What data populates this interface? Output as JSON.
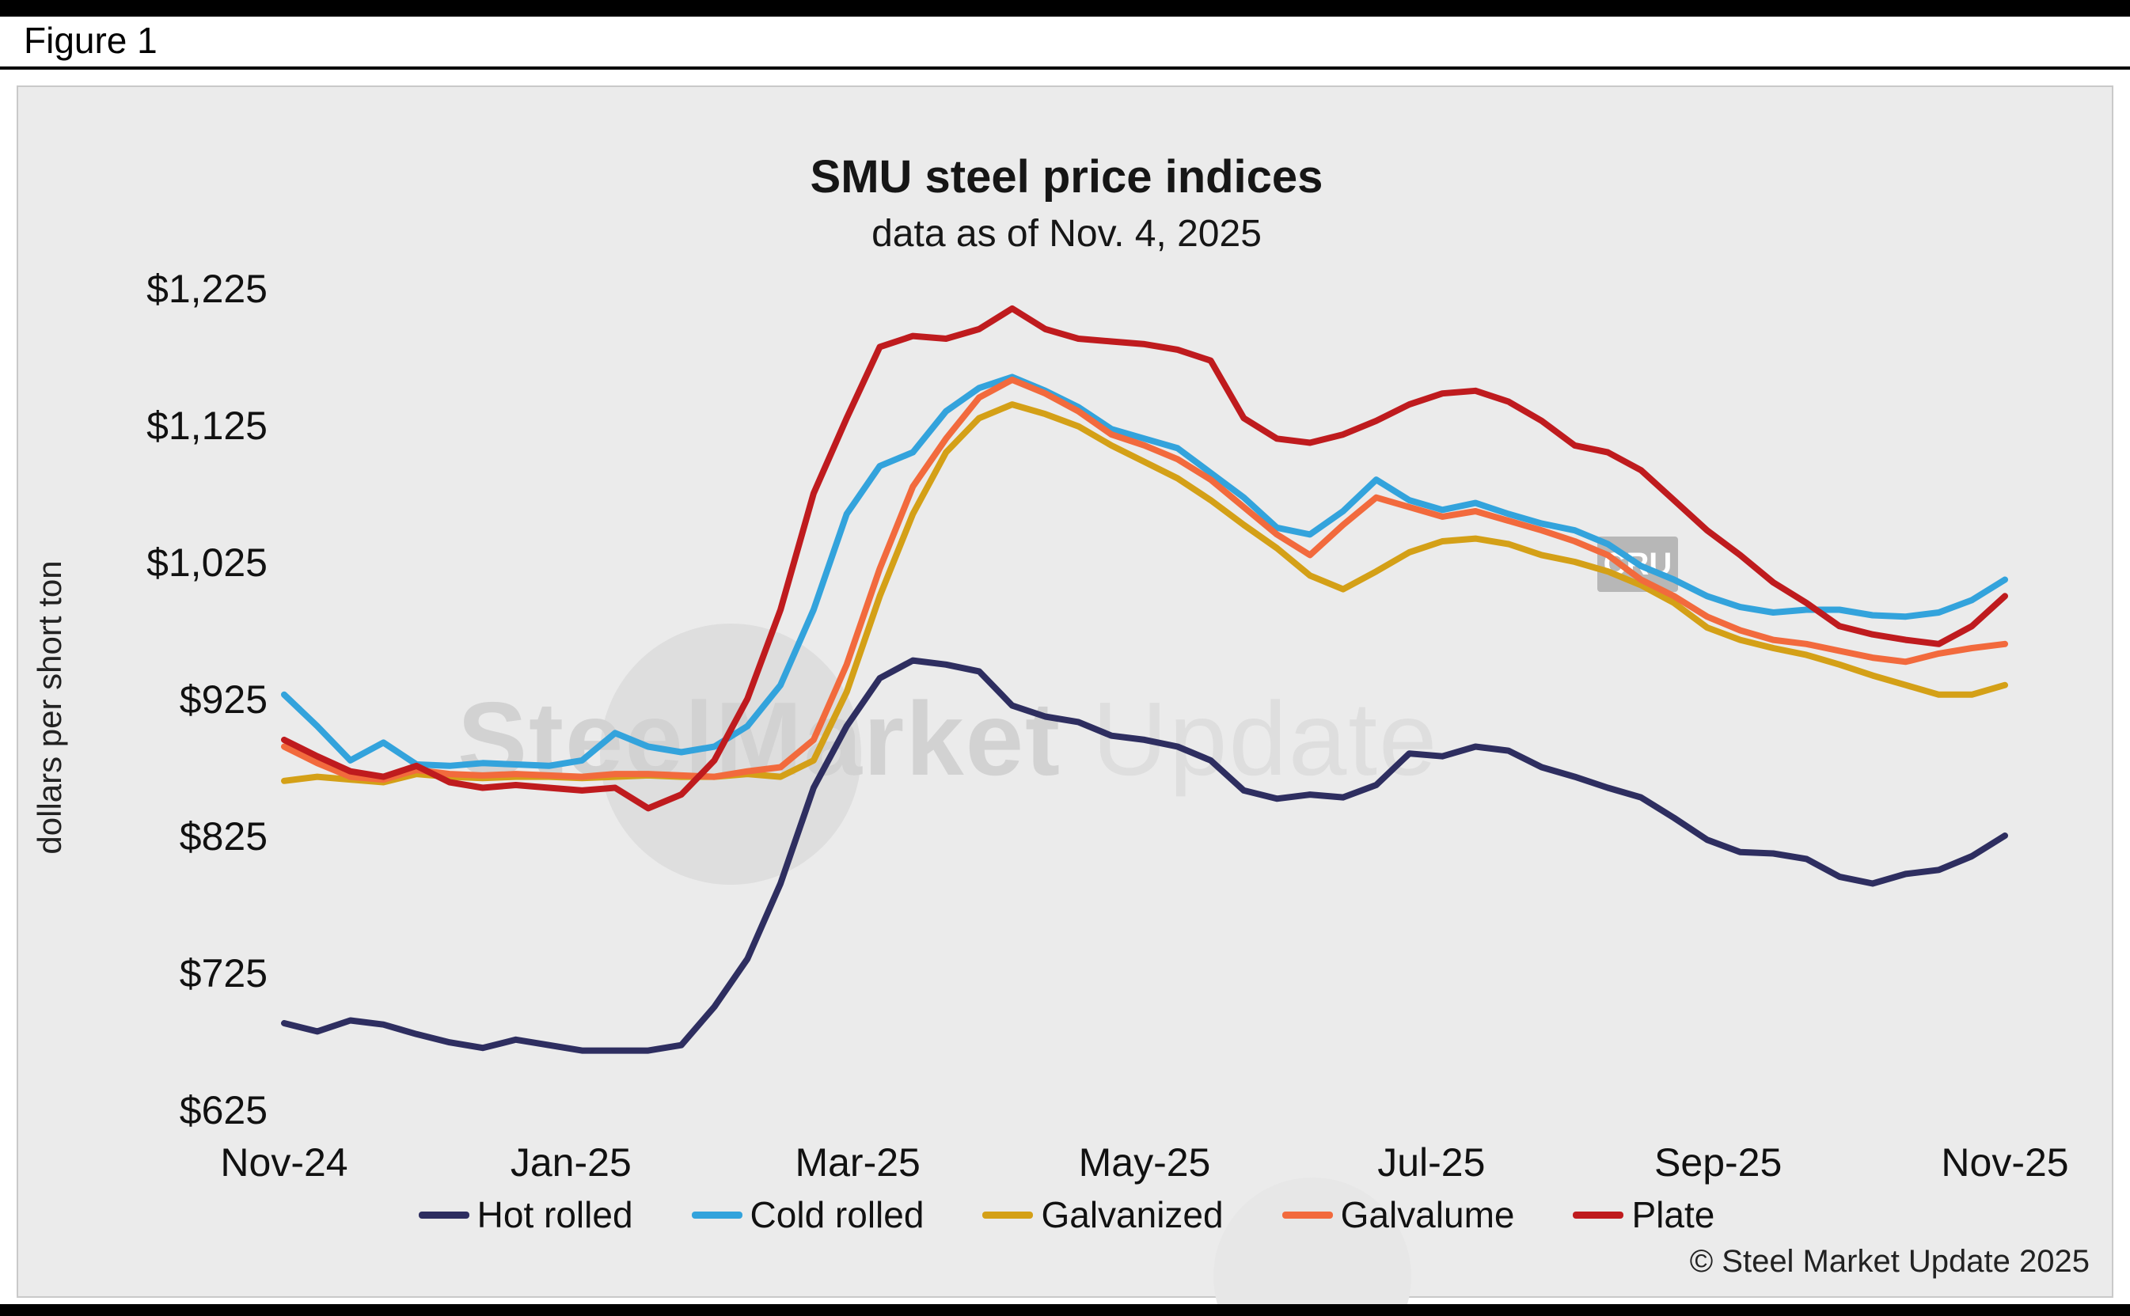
{
  "figure_label": "Figure 1",
  "header": {
    "title": "SMU steel price indices",
    "subtitle": "data as of Nov. 4, 2025"
  },
  "watermark": {
    "text_bold": "SteelMarket",
    "text_light": "Update",
    "badge": "CRU"
  },
  "copyright": "© Steel Market Update 2025",
  "chart_data": {
    "type": "line",
    "title": "SMU steel price indices",
    "subtitle": "data as of Nov. 4, 2025",
    "xlabel": "",
    "ylabel": "dollars per short ton",
    "ylim": [
      625,
      1225
    ],
    "y_ticks": [
      1225,
      1125,
      1025,
      925,
      825,
      725,
      625
    ],
    "y_tick_labels": [
      "$1,225",
      "$1,125",
      "$1,025",
      "$925",
      "$825",
      "$725",
      "$625"
    ],
    "x_ticks": [
      "Nov-24",
      "Jan-25",
      "Mar-25",
      "May-25",
      "Jul-25",
      "Sep-25",
      "Nov-25"
    ],
    "x_unit": "weekly observations, Nov 2024 through Nov 2025",
    "grid": false,
    "legend_position": "bottom",
    "series": [
      {
        "name": "Hot rolled",
        "color": "#2e2e60",
        "values": [
          688,
          682,
          690,
          687,
          680,
          674,
          670,
          676,
          672,
          668,
          668,
          668,
          672,
          700,
          735,
          790,
          860,
          905,
          940,
          953,
          950,
          945,
          920,
          912,
          908,
          898,
          895,
          890,
          880,
          858,
          852,
          855,
          853,
          862,
          885,
          883,
          890,
          887,
          875,
          868,
          860,
          853,
          838,
          822,
          813,
          812,
          808,
          795,
          790,
          797,
          800,
          810,
          825
        ]
      },
      {
        "name": "Cold rolled",
        "color": "#33a3dc",
        "values": [
          928,
          905,
          880,
          893,
          877,
          876,
          878,
          877,
          876,
          880,
          900,
          890,
          886,
          890,
          905,
          935,
          990,
          1060,
          1095,
          1105,
          1135,
          1152,
          1160,
          1150,
          1138,
          1122,
          1115,
          1108,
          1090,
          1072,
          1050,
          1045,
          1062,
          1085,
          1070,
          1063,
          1068,
          1060,
          1053,
          1048,
          1038,
          1022,
          1012,
          1000,
          992,
          988,
          990,
          990,
          986,
          985,
          988,
          997,
          1012
        ]
      },
      {
        "name": "Galvanized",
        "color": "#d4a017",
        "values": [
          865,
          868,
          866,
          864,
          870,
          868,
          867,
          868,
          868,
          867,
          868,
          869,
          868,
          868,
          870,
          868,
          880,
          930,
          1000,
          1060,
          1105,
          1130,
          1140,
          1133,
          1124,
          1110,
          1098,
          1086,
          1070,
          1052,
          1035,
          1015,
          1005,
          1018,
          1032,
          1040,
          1042,
          1038,
          1030,
          1025,
          1018,
          1008,
          995,
          977,
          968,
          962,
          957,
          950,
          942,
          935,
          928,
          928,
          935
        ]
      },
      {
        "name": "Galvalume",
        "color": "#f26a3d",
        "values": [
          890,
          878,
          868,
          866,
          873,
          870,
          869,
          870,
          869,
          868,
          870,
          870,
          869,
          868,
          872,
          875,
          895,
          950,
          1020,
          1080,
          1115,
          1145,
          1158,
          1148,
          1135,
          1118,
          1110,
          1100,
          1085,
          1065,
          1045,
          1030,
          1052,
          1072,
          1065,
          1058,
          1062,
          1055,
          1048,
          1040,
          1030,
          1012,
          1000,
          985,
          975,
          968,
          965,
          960,
          955,
          952,
          958,
          962,
          965
        ]
      },
      {
        "name": "Plate",
        "color": "#bf1b1e",
        "values": [
          895,
          883,
          872,
          868,
          876,
          864,
          860,
          862,
          860,
          858,
          860,
          845,
          855,
          880,
          925,
          990,
          1075,
          1130,
          1182,
          1190,
          1188,
          1195,
          1210,
          1195,
          1188,
          1186,
          1184,
          1180,
          1172,
          1130,
          1115,
          1112,
          1118,
          1128,
          1140,
          1148,
          1150,
          1142,
          1128,
          1110,
          1105,
          1092,
          1070,
          1048,
          1030,
          1010,
          995,
          978,
          972,
          968,
          965,
          978,
          1000
        ]
      }
    ]
  }
}
